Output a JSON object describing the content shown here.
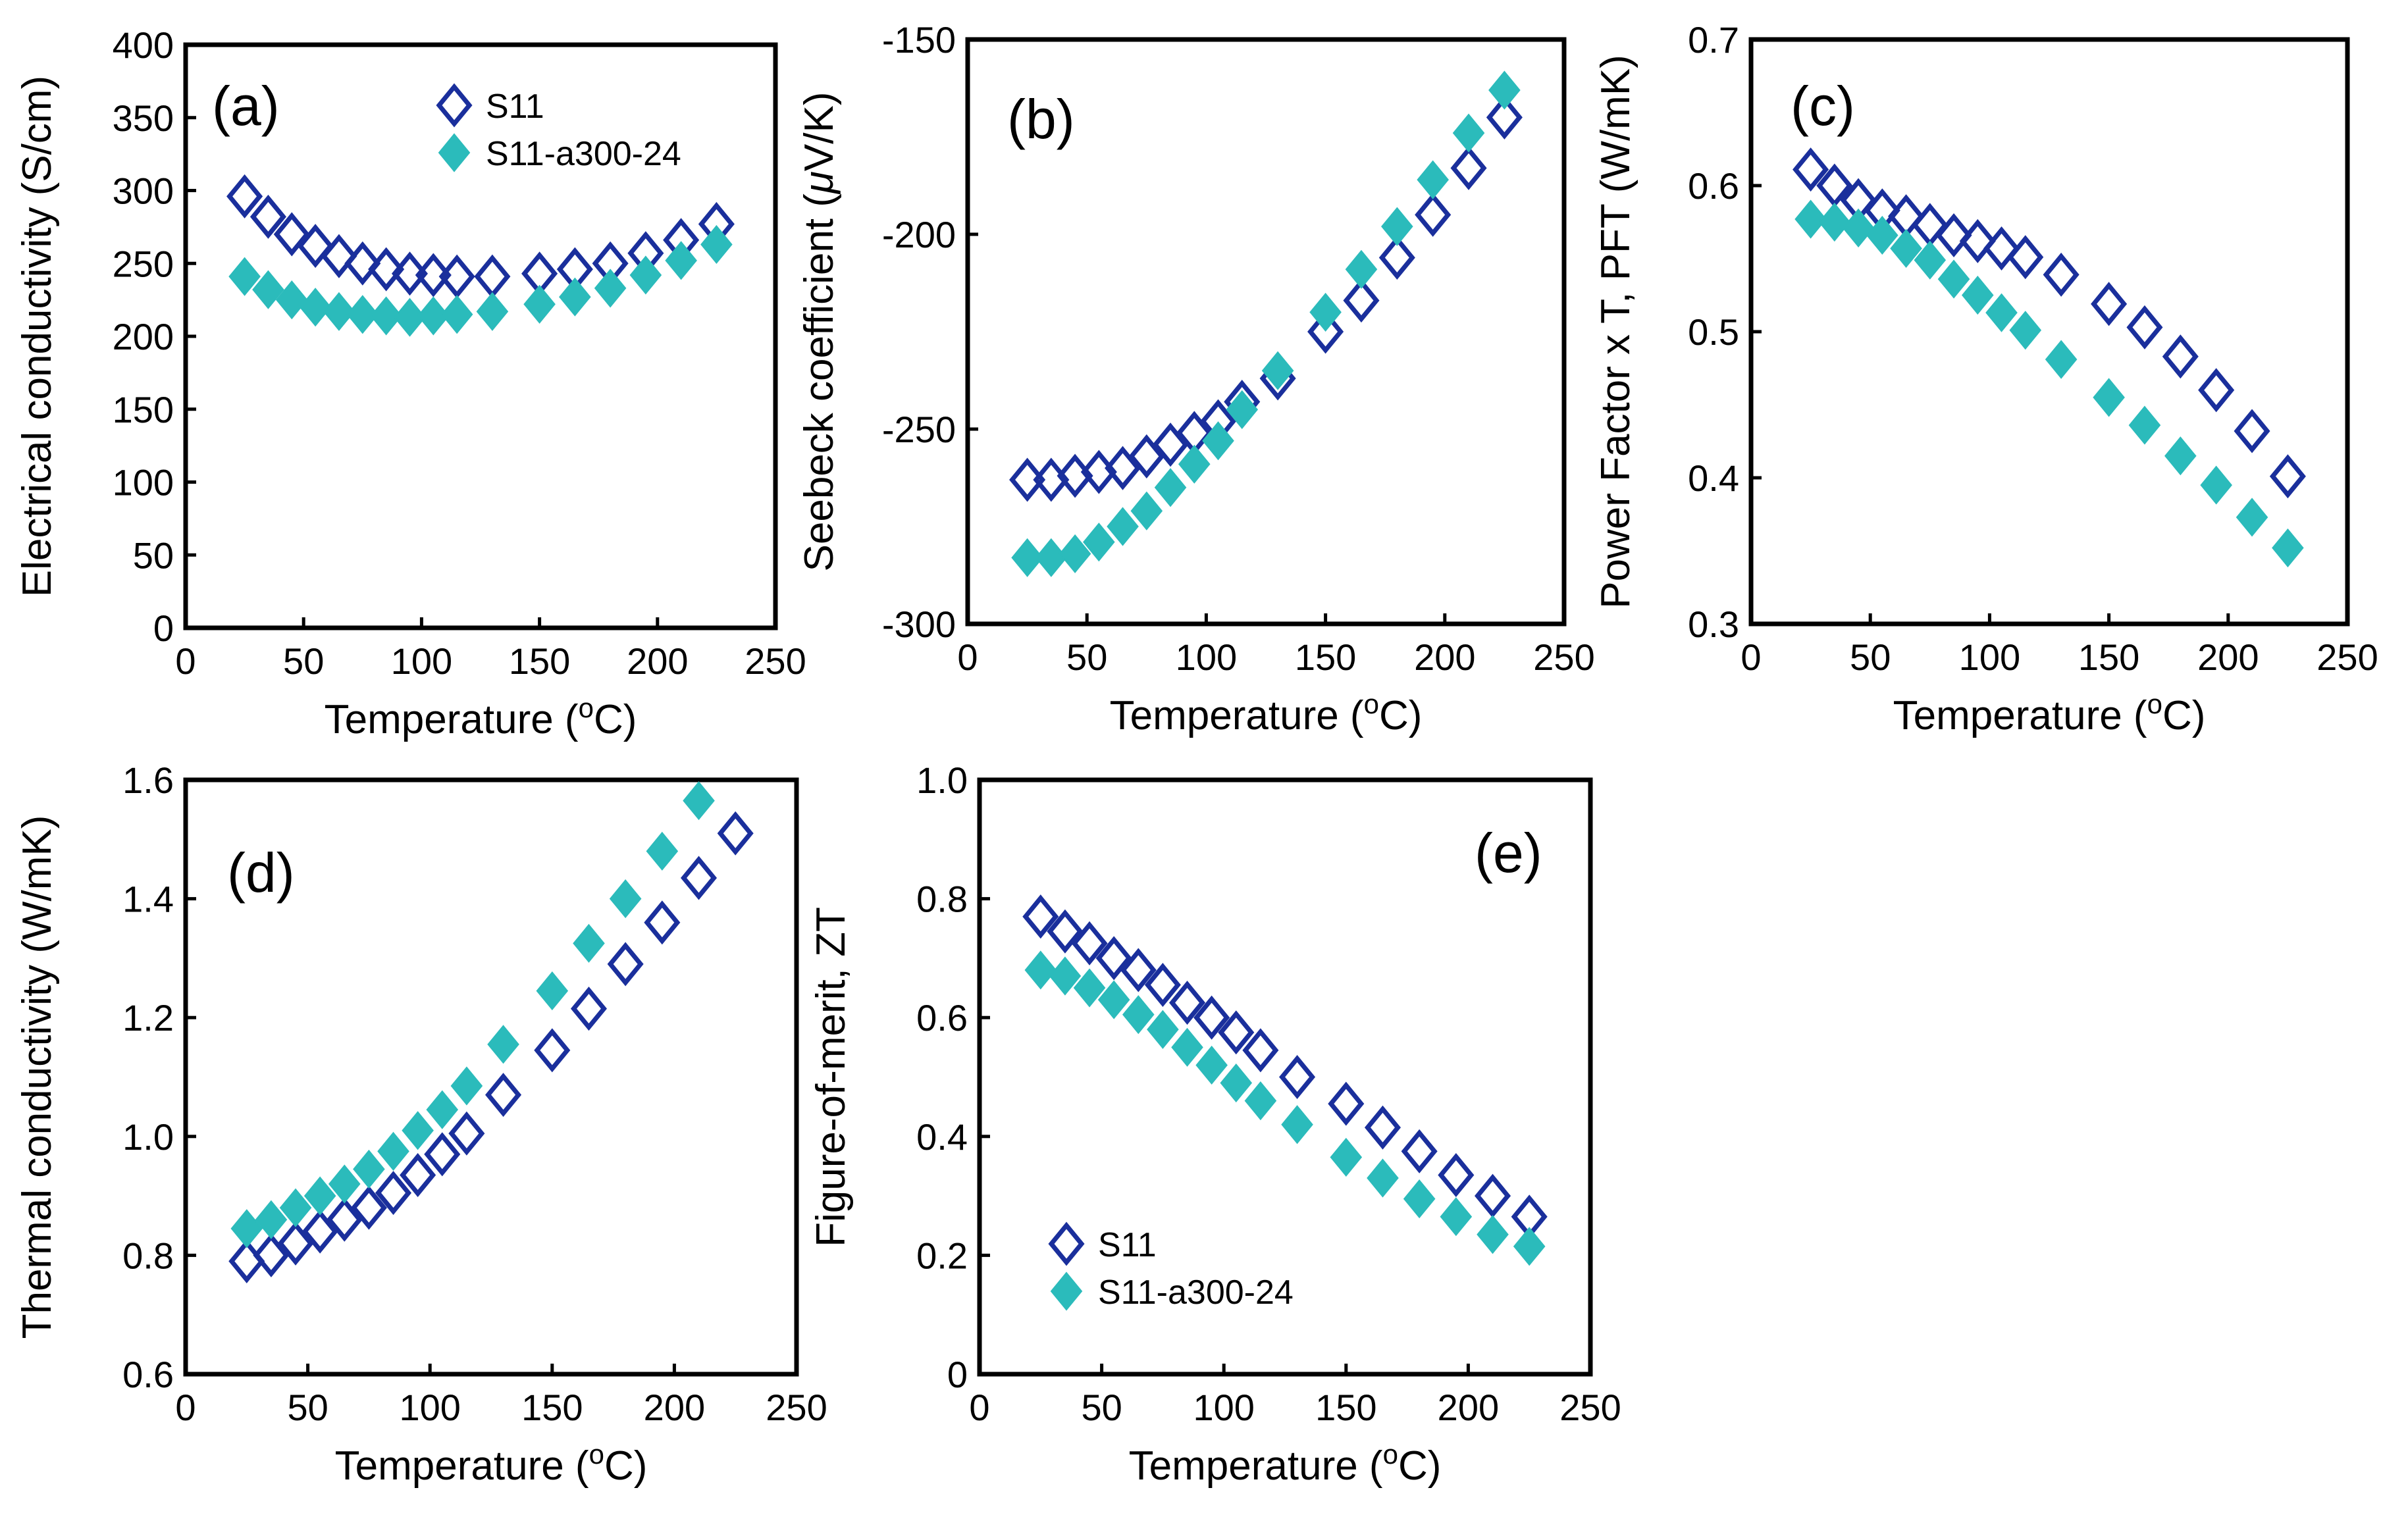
{
  "chart_data": [
    {
      "type": "scatter",
      "panel": "(a)",
      "xlabel": "Temperature (oC)",
      "xlabel_parts": {
        "pre": "Temperature (",
        "sup": "o",
        "post": "C)"
      },
      "ylabel": "Electrical conductivity (S/cm)",
      "ylabel_parts": {
        "pre": "Electrical conductivity (S/cm)",
        "greek": "",
        "post": ""
      },
      "xlim": [
        0,
        250
      ],
      "ylim": [
        0,
        400
      ],
      "xticks": [
        "0",
        "50",
        "100",
        "150",
        "200",
        "250"
      ],
      "yticks": [
        "0",
        "50",
        "100",
        "150",
        "200",
        "250",
        "300",
        "350",
        "400"
      ],
      "legend": {
        "show": true,
        "placement": "top-center",
        "entries": [
          "S11",
          "S11-a300-24"
        ]
      },
      "x": [
        25,
        35,
        45,
        55,
        65,
        75,
        85,
        95,
        105,
        115,
        130,
        150,
        165,
        180,
        195,
        210,
        225
      ],
      "series": [
        {
          "name": "S11",
          "marker": "open-diamond",
          "color": "#1a2f9c",
          "values": [
            296,
            282,
            270,
            262,
            255,
            250,
            246,
            243,
            242,
            241,
            241,
            243,
            246,
            250,
            257,
            266,
            277
          ]
        },
        {
          "name": "S11-a300-24",
          "marker": "filled-diamond",
          "color": "#2bbbbb",
          "values": [
            241,
            232,
            225,
            220,
            217,
            215,
            214,
            213,
            214,
            215,
            217,
            222,
            227,
            233,
            242,
            252,
            263
          ]
        }
      ]
    },
    {
      "type": "scatter",
      "panel": "(b)",
      "xlabel": "Temperature (oC)",
      "xlabel_parts": {
        "pre": "Temperature (",
        "sup": "o",
        "post": "C)"
      },
      "ylabel": "Seebeck coefficient (μV/K)",
      "ylabel_parts": {
        "pre": "Seebeck coefficient (",
        "greek": "μ",
        "post": "V/K)"
      },
      "xlim": [
        0,
        250
      ],
      "ylim": [
        -300,
        -150
      ],
      "xticks": [
        "0",
        "50",
        "100",
        "150",
        "200",
        "250"
      ],
      "yticks": [
        "-300",
        "-250",
        "-200",
        "-150"
      ],
      "legend": {
        "show": false
      },
      "x": [
        25,
        35,
        45,
        55,
        65,
        75,
        85,
        95,
        105,
        115,
        130,
        150,
        165,
        180,
        195,
        210,
        225
      ],
      "series": [
        {
          "name": "S11",
          "marker": "open-diamond",
          "color": "#1a2f9c",
          "values": [
            -263,
            -263,
            -262,
            -261,
            -260,
            -257,
            -254,
            -251,
            -248,
            -243,
            -237,
            -225,
            -217,
            -206,
            -195,
            -183,
            -170
          ]
        },
        {
          "name": "S11-a300-24",
          "marker": "filled-diamond",
          "color": "#2bbbbb",
          "values": [
            -283,
            -283,
            -282,
            -279,
            -275,
            -271,
            -265,
            -259,
            -253,
            -245,
            -235,
            -220,
            -209,
            -198,
            -186,
            -174,
            -163
          ]
        }
      ]
    },
    {
      "type": "scatter",
      "panel": "(c)",
      "xlabel": "Temperature (oC)",
      "xlabel_parts": {
        "pre": "Temperature (",
        "sup": "o",
        "post": "C)"
      },
      "ylabel": "Power Factor x T, PFT (W/mK)",
      "ylabel_parts": {
        "pre": "Power Factor x T, PFT (W/mK)",
        "greek": "",
        "post": ""
      },
      "xlim": [
        0,
        250
      ],
      "ylim": [
        0.3,
        0.7
      ],
      "xticks": [
        "0",
        "50",
        "100",
        "150",
        "200",
        "250"
      ],
      "yticks": [
        "0.3",
        "0.4",
        "0.5",
        "0.6",
        "0.7"
      ],
      "legend": {
        "show": false
      },
      "x": [
        25,
        35,
        45,
        55,
        65,
        75,
        85,
        95,
        105,
        115,
        130,
        150,
        165,
        180,
        195,
        210,
        225
      ],
      "series": [
        {
          "name": "S11",
          "marker": "open-diamond",
          "color": "#1a2f9c",
          "values": [
            0.611,
            0.6,
            0.59,
            0.583,
            0.579,
            0.573,
            0.566,
            0.562,
            0.557,
            0.551,
            0.539,
            0.519,
            0.503,
            0.483,
            0.46,
            0.432,
            0.401
          ]
        },
        {
          "name": "S11-a300-24",
          "marker": "filled-diamond",
          "color": "#2bbbbb",
          "values": [
            0.577,
            0.575,
            0.571,
            0.566,
            0.557,
            0.549,
            0.536,
            0.525,
            0.513,
            0.501,
            0.481,
            0.455,
            0.436,
            0.415,
            0.395,
            0.373,
            0.352
          ]
        }
      ]
    },
    {
      "type": "scatter",
      "panel": "(d)",
      "xlabel": "Temperature (oC)",
      "xlabel_parts": {
        "pre": "Temperature (",
        "sup": "o",
        "post": "C)"
      },
      "ylabel": "Thermal conductivity (W/mK)",
      "ylabel_parts": {
        "pre": "Thermal conductivity (W/mK)",
        "greek": "",
        "post": ""
      },
      "xlim": [
        0,
        250
      ],
      "ylim": [
        0.6,
        1.6
      ],
      "xticks": [
        "0",
        "50",
        "100",
        "150",
        "200",
        "250"
      ],
      "yticks": [
        "0.6",
        "0.8",
        "1.0",
        "1.2",
        "1.4",
        "1.6"
      ],
      "legend": {
        "show": false
      },
      "x": [
        25,
        35,
        45,
        55,
        65,
        75,
        85,
        95,
        105,
        115,
        130,
        150,
        165,
        180,
        195,
        210,
        225
      ],
      "series": [
        {
          "name": "S11",
          "marker": "open-diamond",
          "color": "#1a2f9c",
          "values": [
            0.79,
            0.8,
            0.82,
            0.84,
            0.86,
            0.88,
            0.905,
            0.935,
            0.97,
            1.005,
            1.07,
            1.145,
            1.215,
            1.29,
            1.36,
            1.435,
            1.51
          ]
        },
        {
          "name": "S11-a300-24",
          "marker": "filled-diamond",
          "color": "#2bbbbb",
          "values": [
            0.845,
            0.86,
            0.88,
            0.9,
            0.92,
            0.945,
            0.975,
            1.01,
            1.045,
            1.085,
            1.155,
            1.245,
            1.325,
            1.4,
            1.48,
            1.565,
            null
          ]
        }
      ]
    },
    {
      "type": "scatter",
      "panel": "(e)",
      "xlabel": "Temperature (oC)",
      "xlabel_parts": {
        "pre": "Temperature (",
        "sup": "o",
        "post": "C)"
      },
      "ylabel": "Figure-of-merit, ZT",
      "ylabel_parts": {
        "pre": "Figure-of-merit, ZT",
        "greek": "",
        "post": ""
      },
      "xlim": [
        0,
        250
      ],
      "ylim": [
        0,
        1.0
      ],
      "xticks": [
        "0",
        "50",
        "100",
        "150",
        "200",
        "250"
      ],
      "yticks": [
        "0",
        "0.2",
        "0.4",
        "0.6",
        "0.8",
        "1.0"
      ],
      "legend": {
        "show": true,
        "placement": "bottom-left",
        "entries": [
          "S11",
          "S11-a300-24"
        ]
      },
      "x": [
        25,
        35,
        45,
        55,
        65,
        75,
        85,
        95,
        105,
        115,
        130,
        150,
        165,
        180,
        195,
        210,
        225
      ],
      "series": [
        {
          "name": "S11",
          "marker": "open-diamond",
          "color": "#1a2f9c",
          "values": [
            0.77,
            0.745,
            0.725,
            0.7,
            0.68,
            0.655,
            0.625,
            0.6,
            0.575,
            0.545,
            0.5,
            0.455,
            0.415,
            0.375,
            0.335,
            0.3,
            0.265
          ]
        },
        {
          "name": "S11-a300-24",
          "marker": "filled-diamond",
          "color": "#2bbbbb",
          "values": [
            0.68,
            0.67,
            0.65,
            0.63,
            0.605,
            0.58,
            0.55,
            0.52,
            0.49,
            0.46,
            0.42,
            0.365,
            0.33,
            0.295,
            0.265,
            0.235,
            0.215
          ]
        }
      ]
    }
  ]
}
